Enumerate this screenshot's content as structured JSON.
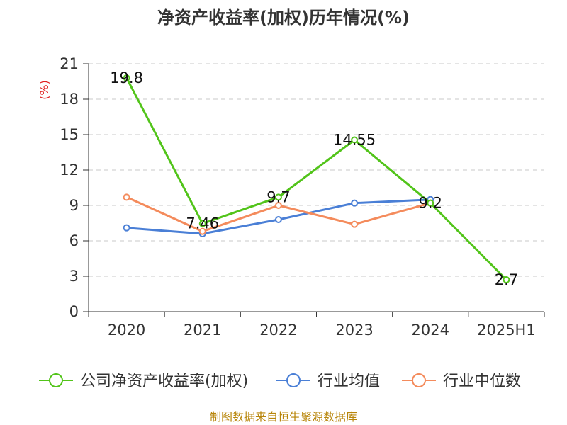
{
  "chart_data": {
    "type": "line",
    "title": "净资产收益率(加权)历年情况(%)",
    "ylabel": "(%)",
    "xlabel": "",
    "categories": [
      "2020",
      "2021",
      "2022",
      "2023",
      "2024",
      "2025H1"
    ],
    "ylim": [
      0,
      21
    ],
    "yticks": [
      0,
      3,
      6,
      9,
      12,
      15,
      18,
      21
    ],
    "grid": true,
    "legend_position": "bottom",
    "series": [
      {
        "name": "公司净资产收益率(加权)",
        "color": "#52c41a",
        "values": [
          19.8,
          7.46,
          9.7,
          14.55,
          9.2,
          2.7
        ],
        "labels": [
          "19.8",
          "7.46",
          "9.7",
          "14.55",
          "9.2",
          "2.7"
        ]
      },
      {
        "name": "行业均值",
        "color": "#4a7fd6",
        "values": [
          7.1,
          6.6,
          7.8,
          9.2,
          9.5,
          null
        ]
      },
      {
        "name": "行业中位数",
        "color": "#f48b5c",
        "values": [
          9.7,
          6.8,
          9.0,
          7.4,
          9.2,
          null
        ]
      }
    ],
    "source": "制图数据来自恒生聚源数据库"
  }
}
